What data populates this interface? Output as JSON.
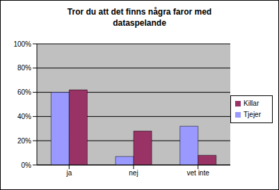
{
  "chart_data": {
    "type": "bar",
    "title": "Tror du att det finns några faror med dataspelande",
    "categories": [
      "ja",
      "nej",
      "vet inte"
    ],
    "series": [
      {
        "name": "Tjejer",
        "color": "#9999ff",
        "values": [
          60,
          7,
          32
        ]
      },
      {
        "name": "Killar",
        "color": "#993366",
        "values": [
          62,
          28,
          8
        ]
      }
    ],
    "ylim": [
      0,
      100
    ],
    "yticks": [
      {
        "value": 0,
        "label": "0%"
      },
      {
        "value": 20,
        "label": "20%"
      },
      {
        "value": 40,
        "label": "40%"
      },
      {
        "value": 60,
        "label": "60%"
      },
      {
        "value": 80,
        "label": "80%"
      },
      {
        "value": 100,
        "label": "100%"
      }
    ],
    "grid": true,
    "legend": "right"
  }
}
